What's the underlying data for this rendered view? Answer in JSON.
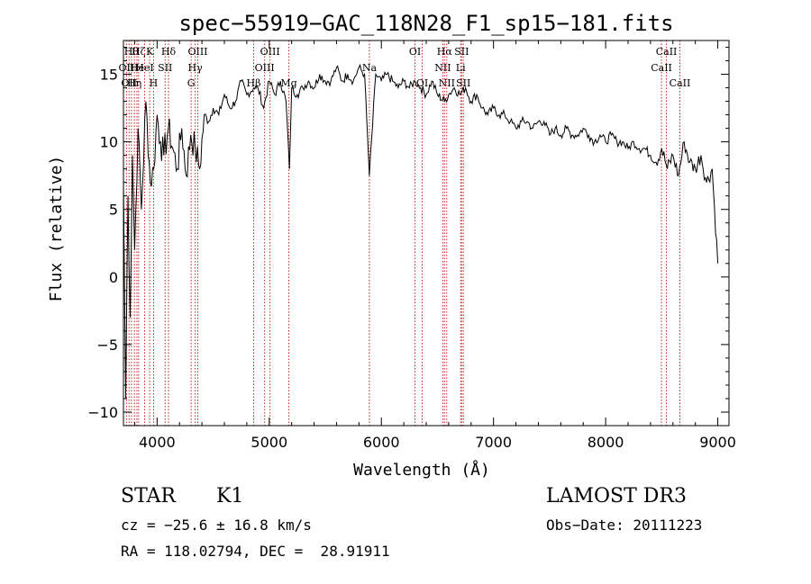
{
  "chart_data": {
    "type": "line",
    "title": "spec−55919−GAC_118N28_F1_sp15−181.fits",
    "xlabel": "Wavelength (Å)",
    "ylabel": "Flux (relative)",
    "xlim": [
      3700,
      9100
    ],
    "ylim": [
      -11,
      17.5
    ],
    "x_ticks": [
      4000,
      5000,
      6000,
      7000,
      8000,
      9000
    ],
    "y_ticks": [
      -10,
      -5,
      0,
      5,
      10,
      15
    ],
    "grid": false,
    "series": [
      {
        "name": "spectrum",
        "color": "#000000",
        "x": [
          3700,
          3720,
          3740,
          3760,
          3780,
          3800,
          3830,
          3860,
          3900,
          3940,
          3970,
          4000,
          4030,
          4060,
          4100,
          4140,
          4180,
          4220,
          4260,
          4300,
          4340,
          4380,
          4420,
          4460,
          4500,
          4550,
          4600,
          4650,
          4700,
          4750,
          4800,
          4861,
          4900,
          4950,
          5000,
          5050,
          5100,
          5150,
          5180,
          5200,
          5250,
          5300,
          5350,
          5400,
          5450,
          5500,
          5550,
          5600,
          5650,
          5700,
          5750,
          5800,
          5850,
          5893,
          5950,
          6000,
          6050,
          6100,
          6150,
          6200,
          6250,
          6300,
          6350,
          6400,
          6450,
          6500,
          6563,
          6600,
          6650,
          6700,
          6750,
          6800,
          6850,
          6900,
          6950,
          7000,
          7050,
          7100,
          7150,
          7200,
          7250,
          7300,
          7350,
          7400,
          7450,
          7500,
          7550,
          7600,
          7650,
          7700,
          7750,
          7800,
          7850,
          7900,
          7950,
          8000,
          8050,
          8100,
          8150,
          8200,
          8250,
          8300,
          8350,
          8400,
          8450,
          8500,
          8550,
          8600,
          8650,
          8700,
          8750,
          8800,
          8850,
          8900,
          8950,
          9000
        ],
        "y": [
          7,
          -9,
          6,
          -3,
          9,
          2,
          11,
          5,
          13,
          7,
          8,
          12,
          10,
          9,
          11,
          9.5,
          8,
          11,
          7.5,
          10.5,
          9.5,
          8,
          12,
          11.5,
          12.5,
          12,
          13.5,
          12.5,
          13,
          14.5,
          13.5,
          14,
          14,
          12.5,
          14.5,
          13.5,
          14.5,
          13,
          8,
          14,
          13.5,
          14,
          14.5,
          14,
          15,
          14.5,
          14.5,
          15.5,
          14.5,
          15,
          14.5,
          15.5,
          15,
          7.5,
          15,
          14.5,
          15,
          14.5,
          14,
          14.5,
          14,
          14.5,
          14,
          13.5,
          14.5,
          13.5,
          13,
          13.5,
          14,
          13.5,
          14,
          13,
          13.5,
          12.5,
          12,
          12.5,
          12,
          12,
          11.5,
          11,
          11.5,
          11.5,
          11,
          11.5,
          11.5,
          10.5,
          11,
          10.5,
          11,
          10.5,
          10.5,
          11,
          10.5,
          10,
          10.5,
          10,
          10.5,
          10,
          10,
          9.5,
          10,
          9.5,
          9.5,
          9,
          8.5,
          9.5,
          8,
          9,
          7.5,
          10,
          8.5,
          8,
          9,
          7,
          8,
          1
        ]
      }
    ],
    "lines": [
      {
        "x": 3727,
        "label": "OII",
        "row": 1
      },
      {
        "x": 3750,
        "label": "OII",
        "row": 2
      },
      {
        "x": 3771,
        "label": "Hθ",
        "row": 0
      },
      {
        "x": 3798,
        "label": "Hη",
        "row": 2
      },
      {
        "x": 3820,
        "label": "He",
        "row": 1
      },
      {
        "x": 3835,
        "label": "Hζ",
        "row": 0
      },
      {
        "x": 3889,
        "label": "HeI",
        "row": 1
      },
      {
        "x": 3934,
        "label": "K",
        "row": 0
      },
      {
        "x": 3969,
        "label": "H",
        "row": 2
      },
      {
        "x": 4072,
        "label": "SII",
        "row": 1
      },
      {
        "x": 4102,
        "label": "Hδ",
        "row": 0
      },
      {
        "x": 4304,
        "label": "G",
        "row": 2
      },
      {
        "x": 4340,
        "label": "Hγ",
        "row": 1
      },
      {
        "x": 4363,
        "label": "OIII",
        "row": 0
      },
      {
        "x": 4861,
        "label": "Hβ",
        "row": 2
      },
      {
        "x": 4959,
        "label": "OIII",
        "row": 1
      },
      {
        "x": 5007,
        "label": "OIII",
        "row": 0
      },
      {
        "x": 5175,
        "label": "Mg",
        "row": 2
      },
      {
        "x": 5893,
        "label": "Na",
        "row": 1
      },
      {
        "x": 6300,
        "label": "OI",
        "row": 0
      },
      {
        "x": 6364,
        "label": "OI",
        "row": 2
      },
      {
        "x": 6548,
        "label": "NII",
        "row": 1
      },
      {
        "x": 6563,
        "label": "Hα",
        "row": 0
      },
      {
        "x": 6583,
        "label": "NII",
        "row": 2
      },
      {
        "x": 6707,
        "label": "Li",
        "row": 1
      },
      {
        "x": 6716,
        "label": "SII",
        "row": 0
      },
      {
        "x": 6731,
        "label": "SII",
        "row": 2
      },
      {
        "x": 8498,
        "label": "CaII",
        "row": 1
      },
      {
        "x": 8542,
        "label": "CaII",
        "row": 0
      },
      {
        "x": 8662,
        "label": "CaII",
        "row": 2
      }
    ],
    "line_color": "#cc2222"
  },
  "info": {
    "object_class": "STAR",
    "subclass": "K1",
    "survey": "LAMOST DR3",
    "redshift": "cz = −25.6 ± 16.8 km/s",
    "obs_date": "Obs−Date: 20111223",
    "coords": "RA = 118.02794, DEC =  28.91911"
  }
}
